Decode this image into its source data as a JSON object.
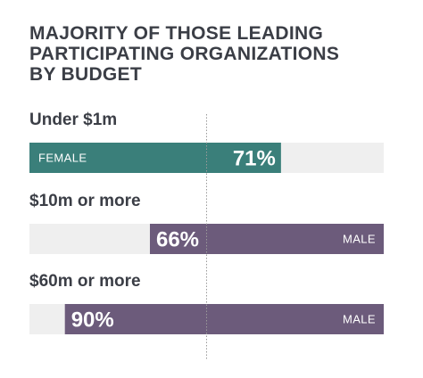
{
  "chart_data": {
    "type": "bar",
    "title_lines": [
      "MAJORITY OF THOSE LEADING",
      "PARTICIPATING ORGANIZATIONS",
      "BY BUDGET"
    ],
    "categories": [
      "Under $1m",
      "$10m or more",
      "$60m or more"
    ],
    "series": [
      {
        "values": [
          71,
          66,
          90
        ],
        "value_labels": [
          "71%",
          "66%",
          "90%"
        ],
        "gender_labels": [
          "FEMALE",
          "MALE",
          "MALE"
        ],
        "directions": [
          "from-left",
          "from-right",
          "from-right"
        ],
        "colors": [
          "#3a7f7a",
          "#6c5b7b",
          "#6c5b7b"
        ]
      }
    ],
    "xlim": [
      0,
      100
    ],
    "reference_line": 50,
    "track_color": "#efefef",
    "reference_line_color": "#9a9a9a"
  }
}
